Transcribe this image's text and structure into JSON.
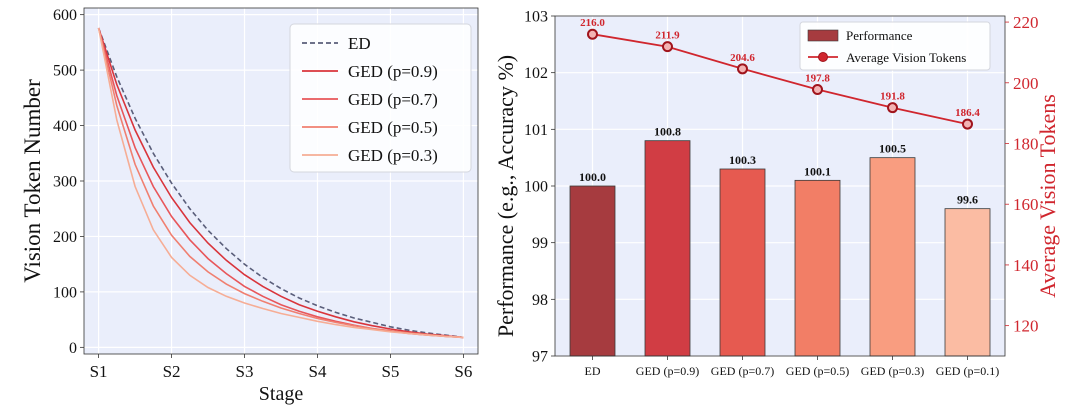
{
  "chart_data": [
    {
      "type": "line",
      "xlabel": "Stage",
      "ylabel": "Vision Token Number",
      "categories": [
        "S1",
        "S2",
        "S3",
        "S4",
        "S5",
        "S6"
      ],
      "ylim": [
        0,
        600
      ],
      "yticks": [
        0,
        100,
        200,
        300,
        400,
        500,
        600
      ],
      "grid": true,
      "legend_position": "top-right",
      "x": [
        1.0,
        1.25,
        1.5,
        1.75,
        2.0,
        2.25,
        2.5,
        2.75,
        3.0,
        3.25,
        3.5,
        3.75,
        4.0,
        4.25,
        4.5,
        4.75,
        5.0,
        5.25,
        5.5,
        5.75,
        6.0
      ],
      "series": [
        {
          "name": "ED",
          "style": "dashed",
          "color": "#5a5e7a",
          "values": [
            576,
            488,
            413,
            350,
            296,
            250,
            211,
            178,
            150,
            126,
            106,
            89,
            75,
            63,
            53,
            45,
            37,
            31,
            26,
            22,
            18
          ]
        },
        {
          "name": "GED (p=0.9)",
          "style": "solid",
          "color": "#d9343b",
          "values": [
            576,
            474,
            392,
            325,
            270,
            225,
            188,
            157,
            131,
            110,
            92,
            77,
            65,
            55,
            46,
            39,
            33,
            28,
            24,
            21,
            18
          ]
        },
        {
          "name": "GED (p=0.7)",
          "style": "solid",
          "color": "#e8565a",
          "values": [
            576,
            454,
            360,
            290,
            236,
            194,
            160,
            133,
            110,
            92,
            77,
            65,
            55,
            47,
            40,
            34,
            29,
            25,
            22,
            20,
            18
          ]
        },
        {
          "name": "GED (p=0.5)",
          "style": "solid",
          "color": "#f07f70",
          "values": [
            576,
            436,
            330,
            255,
            202,
            164,
            136,
            114,
            97,
            83,
            71,
            61,
            52,
            45,
            39,
            34,
            30,
            26,
            23,
            20,
            18
          ]
        },
        {
          "name": "GED (p=0.3)",
          "style": "solid",
          "color": "#f6ad95",
          "values": [
            576,
            410,
            290,
            212,
            162,
            130,
            108,
            92,
            80,
            70,
            61,
            54,
            47,
            41,
            36,
            32,
            28,
            25,
            22,
            20,
            18
          ]
        }
      ]
    },
    {
      "type": "bar",
      "ylabel": "Performance (e.g., Accuracy %)",
      "y2label": "Average Vision Tokens",
      "categories": [
        "ED",
        "GED (p=0.9)",
        "GED (p=0.7)",
        "GED (p=0.5)",
        "GED (p=0.3)",
        "GED (p=0.1)"
      ],
      "ylim": [
        97,
        103
      ],
      "yticks": [
        97,
        98,
        99,
        100,
        101,
        102,
        103
      ],
      "y2lim": [
        110,
        222
      ],
      "y2ticks": [
        120,
        140,
        160,
        180,
        200,
        220
      ],
      "grid": true,
      "legend_position": "top-right",
      "series": [
        {
          "name": "Performance",
          "kind": "bar",
          "values": [
            100.0,
            100.8,
            100.3,
            100.1,
            100.5,
            99.6
          ],
          "labels": [
            "100.0",
            "100.8",
            "100.3",
            "100.1",
            "100.5",
            "99.6"
          ],
          "colors": [
            "#a63b3f",
            "#d13d44",
            "#e65a50",
            "#f27e66",
            "#f99d80",
            "#fbbca3"
          ]
        },
        {
          "name": "Average Vision Tokens",
          "kind": "line",
          "axis": "right",
          "color": "#d0262e",
          "values": [
            216.0,
            211.9,
            204.6,
            197.8,
            191.8,
            186.4
          ],
          "labels": [
            "216.0",
            "211.9",
            "204.6",
            "197.8",
            "191.8",
            "186.4"
          ]
        }
      ]
    }
  ]
}
